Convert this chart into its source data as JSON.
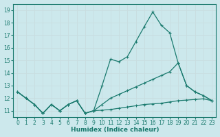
{
  "xlabel": "Humidex (Indice chaleur)",
  "bg_color": "#cce8ec",
  "grid_color": "#c8dde0",
  "line_color": "#1a7a6e",
  "xlim": [
    -0.5,
    23.5
  ],
  "ylim": [
    10.5,
    19.5
  ],
  "yticks": [
    11,
    12,
    13,
    14,
    15,
    16,
    17,
    18,
    19
  ],
  "xticks": [
    0,
    1,
    2,
    3,
    4,
    5,
    6,
    7,
    8,
    9,
    10,
    11,
    12,
    13,
    14,
    15,
    16,
    17,
    18,
    19,
    20,
    21,
    22,
    23
  ],
  "line_main_x": [
    0,
    1,
    2,
    3,
    4,
    5,
    6,
    7,
    8,
    9,
    10,
    11,
    12,
    13,
    14,
    15,
    16,
    17,
    18,
    19,
    20,
    21,
    22,
    23
  ],
  "line_main_y": [
    12.5,
    12.0,
    11.5,
    10.8,
    11.5,
    11.0,
    11.5,
    11.8,
    10.8,
    11.0,
    13.0,
    15.1,
    14.9,
    15.3,
    16.5,
    17.7,
    18.85,
    17.8,
    17.2,
    14.8,
    13.0,
    12.5,
    12.2,
    11.8
  ],
  "line_mid_x": [
    0,
    1,
    2,
    3,
    4,
    5,
    6,
    7,
    8,
    9,
    10,
    11,
    12,
    13,
    14,
    15,
    16,
    17,
    18,
    19,
    20,
    21,
    22,
    23
  ],
  "line_mid_y": [
    12.5,
    12.0,
    11.5,
    10.8,
    11.5,
    11.0,
    11.5,
    11.8,
    10.8,
    11.0,
    11.5,
    12.0,
    12.3,
    12.6,
    12.9,
    13.2,
    13.5,
    13.8,
    14.1,
    14.8,
    13.0,
    12.5,
    12.2,
    11.8
  ],
  "line_low_x": [
    0,
    1,
    2,
    3,
    4,
    5,
    6,
    7,
    8,
    9,
    10,
    11,
    12,
    13,
    14,
    15,
    16,
    17,
    18,
    19,
    20,
    21,
    22,
    23
  ],
  "line_low_y": [
    12.5,
    12.0,
    11.5,
    10.8,
    11.5,
    11.0,
    11.5,
    11.8,
    10.8,
    11.0,
    11.05,
    11.1,
    11.2,
    11.3,
    11.4,
    11.5,
    11.55,
    11.6,
    11.7,
    11.8,
    11.85,
    11.9,
    11.95,
    11.8
  ]
}
